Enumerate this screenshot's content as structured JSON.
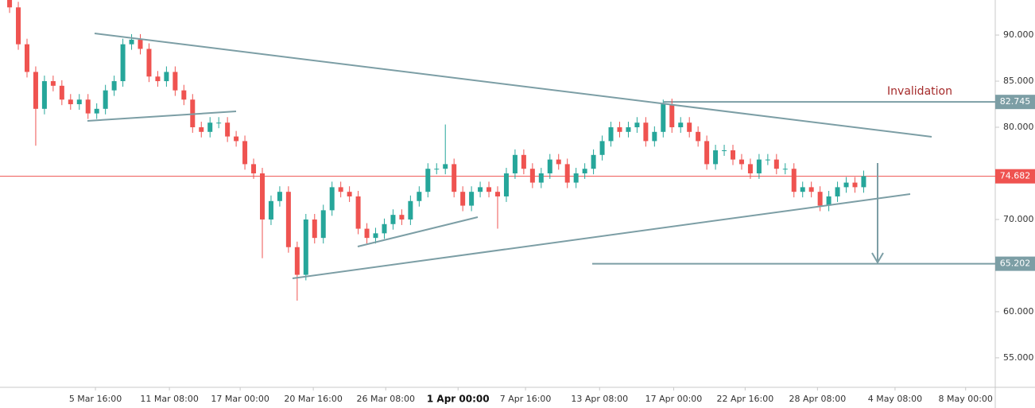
{
  "chart_data": {
    "type": "candlestick",
    "annotation": "Invalidation",
    "up_color": "#26a69a",
    "down_color": "#ef5350",
    "open": [
      94,
      93,
      89,
      86,
      82,
      85,
      84.5,
      83,
      82.5,
      83,
      81.5,
      82,
      84,
      85,
      89,
      89.5,
      88.5,
      85.5,
      85,
      86,
      84,
      83,
      80,
      79.5,
      80.5,
      80.5,
      79,
      78.5,
      76,
      75,
      70,
      72,
      73,
      67,
      64,
      70,
      68,
      71,
      73.5,
      73,
      72.5,
      69,
      68,
      68.5,
      69.5,
      70.5,
      70,
      72,
      73,
      75.5,
      75.5,
      76,
      73,
      71.5,
      73,
      73.5,
      73,
      72.5,
      75,
      77,
      75.5,
      74,
      75,
      76.5,
      76,
      74,
      75,
      75.5,
      77,
      78.5,
      80,
      79.5,
      80,
      80.5,
      78.5,
      79.5,
      82.5,
      80,
      80.5,
      79.5,
      78.5,
      76,
      77.5,
      77.5,
      76.5,
      76,
      75,
      76.5,
      76.5,
      75.5,
      75.5,
      73,
      73.5,
      73,
      71.5,
      72.5,
      73.5,
      74,
      73.5
    ],
    "high": [
      94.6,
      93.6,
      89.6,
      86.6,
      85.6,
      85.6,
      85.1,
      83.6,
      83.6,
      83.6,
      82.6,
      84.6,
      85.6,
      89.6,
      90.1,
      90.1,
      89.1,
      86.1,
      86.6,
      86.6,
      84.6,
      83.6,
      80.6,
      81.1,
      81.1,
      81.1,
      79.6,
      79.1,
      76.6,
      75.6,
      72.6,
      73.6,
      73.6,
      67.6,
      70.6,
      70.6,
      71.6,
      74.1,
      74.1,
      73.6,
      73.1,
      69.6,
      69.1,
      70.1,
      71.1,
      71.1,
      72.6,
      73.6,
      76.1,
      76.1,
      80.3,
      76.6,
      73.6,
      73.6,
      74.1,
      74.1,
      73.6,
      75.6,
      77.6,
      77.6,
      76.1,
      75.6,
      77.1,
      77.1,
      76.6,
      75.6,
      76.1,
      77.6,
      79.1,
      80.6,
      80.6,
      80.6,
      81.1,
      81.1,
      80.1,
      83.0,
      83.1,
      81.1,
      81.1,
      80.1,
      79.1,
      78.1,
      78.1,
      78.1,
      77.1,
      76.6,
      77.1,
      77.1,
      77.1,
      76.1,
      76.1,
      74.1,
      74.1,
      73.6,
      73.1,
      74.1,
      74.6,
      74.6,
      75.3
    ],
    "low": [
      92.4,
      88.4,
      85.4,
      78.0,
      81.4,
      83.9,
      82.4,
      81.9,
      81.9,
      80.9,
      80.9,
      81.4,
      83.4,
      84.4,
      88.4,
      87.9,
      84.9,
      84.4,
      84.4,
      83.4,
      82.4,
      79.4,
      78.9,
      78.9,
      79.9,
      78.4,
      77.9,
      75.4,
      74.4,
      65.8,
      69.4,
      71.4,
      66.4,
      61.2,
      63.4,
      67.4,
      67.4,
      70.4,
      72.4,
      71.9,
      68.4,
      67.4,
      67.4,
      67.9,
      68.9,
      69.4,
      69.4,
      71.4,
      72.4,
      74.9,
      74.9,
      72.4,
      70.9,
      70.9,
      72.4,
      72.4,
      69.0,
      71.9,
      74.4,
      74.9,
      73.4,
      73.4,
      74.4,
      75.4,
      73.4,
      73.4,
      74.4,
      74.9,
      76.4,
      77.9,
      78.9,
      78.9,
      79.4,
      77.9,
      77.9,
      78.9,
      79.4,
      79.4,
      78.9,
      77.9,
      75.4,
      75.4,
      76.9,
      75.9,
      75.4,
      74.4,
      74.4,
      75.9,
      74.9,
      74.9,
      72.4,
      72.4,
      72.4,
      70.9,
      70.9,
      71.9,
      72.9,
      72.9,
      72.9
    ],
    "close": [
      93,
      89,
      86,
      82,
      85,
      84.5,
      83,
      82.5,
      83,
      81.5,
      82,
      84,
      85,
      89,
      89.5,
      88.5,
      85.5,
      85,
      86,
      84,
      83,
      80,
      79.5,
      80.5,
      80.5,
      79,
      78.5,
      76,
      75,
      70,
      72,
      73,
      67,
      64,
      70,
      68,
      71,
      73.5,
      73,
      72.5,
      69,
      68,
      68.5,
      69.5,
      70.5,
      70,
      72,
      73,
      75.5,
      75.5,
      76,
      73,
      71.5,
      73,
      73.5,
      73,
      72.5,
      75,
      77,
      75.5,
      74,
      75,
      76.5,
      76,
      74,
      75,
      75.5,
      77,
      78.5,
      80,
      79.5,
      80,
      80.5,
      78.5,
      79.5,
      82.5,
      80,
      80.5,
      79.5,
      78.5,
      76,
      77.5,
      77.5,
      76.5,
      76,
      75,
      76.5,
      76.5,
      75.5,
      75.5,
      73,
      73.5,
      73,
      71.5,
      72.5,
      73.5,
      74,
      73.5,
      74.7
    ],
    "xlim": [
      -1.1,
      113.1
    ],
    "xticks": [
      {
        "value": 9.85,
        "label": "5 Mar 16:00"
      },
      {
        "value": 18.34,
        "label": "11 Mar 08:00"
      },
      {
        "value": 26.46,
        "label": "17 Mar 00:00"
      },
      {
        "value": 34.85,
        "label": "20 Mar 16:00"
      },
      {
        "value": 43.16,
        "label": "26 Mar 08:00"
      },
      {
        "value": 51.46,
        "label": "1 Apr 00:00",
        "bold": true
      },
      {
        "value": 59.2,
        "label": "7 Apr 16:00"
      },
      {
        "value": 67.7,
        "label": "13 Apr 08:00"
      },
      {
        "value": 76.2,
        "label": "17 Apr 00:00"
      },
      {
        "value": 84.4,
        "label": "22 Apr 16:00"
      },
      {
        "value": 92.7,
        "label": "28 Apr 08:00"
      },
      {
        "value": 101.6,
        "label": "4 May 08:00"
      },
      {
        "value": 109.7,
        "label": "8 May 00:00"
      }
    ],
    "ylim": [
      51.8,
      93.8
    ],
    "yticks": [
      {
        "value": 55,
        "label": "55.000"
      },
      {
        "value": 60,
        "label": "60.000"
      },
      {
        "value": 65,
        "label": "65.000"
      },
      {
        "value": 70,
        "label": "70.000"
      },
      {
        "value": 75,
        "label": "75.000"
      },
      {
        "value": 80,
        "label": "80.000"
      },
      {
        "value": 85,
        "label": "85.000"
      },
      {
        "value": 90,
        "label": "90.000"
      }
    ],
    "levels": [
      {
        "value": 82.745,
        "color": "#7c9ea5"
      },
      {
        "value": 74.682,
        "color": "#ef5350"
      },
      {
        "value": 65.202,
        "color": "#7c9ea5"
      }
    ]
  }
}
